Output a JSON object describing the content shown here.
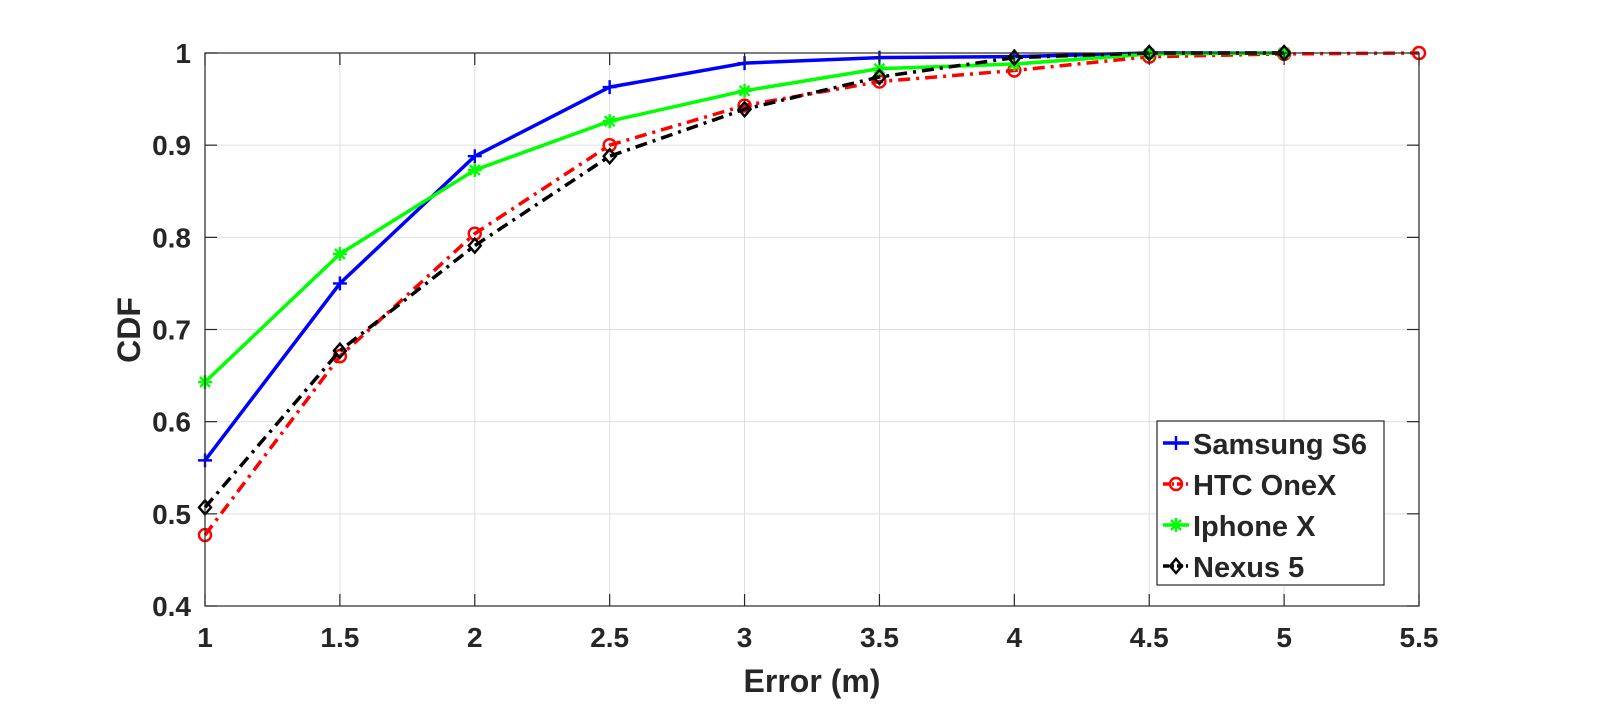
{
  "chart_data": {
    "type": "line",
    "xlabel": "Error (m)",
    "ylabel": "CDF",
    "xlim": [
      1,
      5.5
    ],
    "ylim": [
      0.4,
      1
    ],
    "xticks": [
      "1",
      "1.5",
      "2",
      "2.5",
      "3",
      "3.5",
      "4",
      "4.5",
      "5",
      "5.5"
    ],
    "yticks": [
      "0.4",
      "0.5",
      "0.6",
      "0.7",
      "0.8",
      "0.9",
      "1"
    ],
    "grid": true,
    "legend_position": "bottom-right",
    "series": [
      {
        "name": "Samsung S6",
        "color": "#0000ff",
        "line_style": "solid",
        "marker": "plus",
        "x": [
          1,
          1.5,
          2,
          2.5,
          3,
          3.5,
          4,
          4.5,
          5
        ],
        "y": [
          0.558,
          0.75,
          0.888,
          0.963,
          0.989,
          0.995,
          0.996,
          1.0,
          1.0
        ]
      },
      {
        "name": "HTC OneX",
        "color": "#ff0000",
        "line_style": "dash-dot",
        "marker": "circle",
        "x": [
          1,
          1.5,
          2,
          2.5,
          3,
          3.5,
          4,
          4.5,
          5,
          5.5
        ],
        "y": [
          0.477,
          0.671,
          0.804,
          0.9,
          0.943,
          0.969,
          0.981,
          0.996,
          0.999,
          1.0
        ]
      },
      {
        "name": "Iphone X",
        "color": "#00ff00",
        "line_style": "solid",
        "marker": "asterisk",
        "x": [
          1,
          1.5,
          2,
          2.5,
          3,
          3.5,
          4,
          4.5,
          5
        ],
        "y": [
          0.643,
          0.782,
          0.873,
          0.926,
          0.959,
          0.983,
          0.988,
          0.999,
          1.0
        ]
      },
      {
        "name": "Nexus 5",
        "color": "#000000",
        "line_style": "dash-dot",
        "marker": "diamond",
        "x": [
          1,
          1.5,
          2,
          2.5,
          3,
          3.5,
          4,
          4.5,
          5
        ],
        "y": [
          0.507,
          0.677,
          0.791,
          0.888,
          0.939,
          0.974,
          0.995,
          1.0,
          1.0
        ]
      }
    ]
  }
}
